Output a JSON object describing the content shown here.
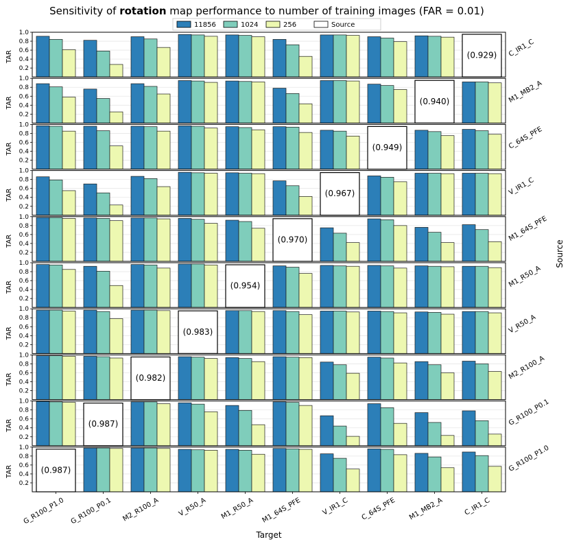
{
  "chart_data": {
    "type": "bar",
    "title_prefix": "Sensitivity of ",
    "title_bold": "rotation",
    "title_suffix": " map performance to number of training images (FAR = 0.01)",
    "xlabel": "Target",
    "ylabel": "TAR",
    "right_label": "Source",
    "ylim": [
      0,
      1.0
    ],
    "yticks": [
      "0.2",
      "0.4",
      "0.6",
      "0.8",
      "1.0"
    ],
    "ytick_values": [
      0.2,
      0.4,
      0.6,
      0.8,
      1.0
    ],
    "grid": true,
    "legend_position": "top-center",
    "categories": [
      "G_R100_P1.0",
      "G_R100_P0.1",
      "M2_R100_A",
      "V_R50_A",
      "M1_R50_A",
      "M1_64S_PFE",
      "V_IR1_C",
      "C_64S_PFE",
      "M1_MB2_A",
      "C_IR1_C"
    ],
    "series": [
      {
        "name": "11856",
        "color": "#2c7fb8"
      },
      {
        "name": "1024",
        "color": "#7fcdbb"
      },
      {
        "name": "256",
        "color": "#edf8b1"
      }
    ],
    "source_legend": "Source",
    "rows": [
      {
        "source": "C_IR1_C",
        "source_index": 9,
        "source_label": "(0.929)",
        "values": [
          [
            0.91,
            0.84,
            0.61
          ],
          [
            0.82,
            0.58,
            0.28
          ],
          [
            0.9,
            0.85,
            0.66
          ],
          [
            0.95,
            0.94,
            0.91
          ],
          [
            0.94,
            0.93,
            0.9
          ],
          [
            0.84,
            0.72,
            0.46
          ],
          [
            0.94,
            0.94,
            0.93
          ],
          [
            0.9,
            0.87,
            0.79
          ],
          [
            0.92,
            0.91,
            0.89
          ],
          null
        ]
      },
      {
        "source": "M1_MB2_A",
        "source_index": 8,
        "source_label": "(0.940)",
        "values": [
          [
            0.88,
            0.81,
            0.58
          ],
          [
            0.76,
            0.55,
            0.25
          ],
          [
            0.88,
            0.82,
            0.65
          ],
          [
            0.95,
            0.94,
            0.91
          ],
          [
            0.94,
            0.93,
            0.92
          ],
          [
            0.78,
            0.66,
            0.43
          ],
          [
            0.95,
            0.95,
            0.94
          ],
          [
            0.87,
            0.84,
            0.75
          ],
          null,
          [
            0.92,
            0.92,
            0.9
          ]
        ]
      },
      {
        "source": "C_64S_PFE",
        "source_index": 7,
        "source_label": "(0.949)",
        "values": [
          [
            0.97,
            0.96,
            0.85
          ],
          [
            0.96,
            0.86,
            0.52
          ],
          [
            0.96,
            0.95,
            0.85
          ],
          [
            0.97,
            0.96,
            0.92
          ],
          [
            0.95,
            0.93,
            0.88
          ],
          [
            0.95,
            0.94,
            0.82
          ],
          [
            0.87,
            0.85,
            0.74
          ],
          null,
          [
            0.87,
            0.84,
            0.75
          ],
          [
            0.89,
            0.86,
            0.78
          ]
        ]
      },
      {
        "source": "V_IR1_C",
        "source_index": 6,
        "source_label": "(0.967)",
        "values": [
          [
            0.86,
            0.79,
            0.55
          ],
          [
            0.7,
            0.5,
            0.23
          ],
          [
            0.87,
            0.82,
            0.64
          ],
          [
            0.96,
            0.95,
            0.94
          ],
          [
            0.95,
            0.94,
            0.93
          ],
          [
            0.77,
            0.66,
            0.42
          ],
          null,
          [
            0.88,
            0.85,
            0.75
          ],
          [
            0.94,
            0.94,
            0.93
          ],
          [
            0.94,
            0.94,
            0.93
          ]
        ]
      },
      {
        "source": "M1_64S_PFE",
        "source_index": 5,
        "source_label": "(0.970)",
        "values": [
          [
            0.98,
            0.98,
            0.96
          ],
          [
            0.97,
            0.96,
            0.91
          ],
          [
            0.97,
            0.97,
            0.95
          ],
          [
            0.96,
            0.94,
            0.85
          ],
          [
            0.92,
            0.89,
            0.74
          ],
          null,
          [
            0.75,
            0.63,
            0.42
          ],
          [
            0.95,
            0.93,
            0.8
          ],
          [
            0.76,
            0.65,
            0.42
          ],
          [
            0.82,
            0.71,
            0.44
          ]
        ]
      },
      {
        "source": "M1_R50_A",
        "source_index": 4,
        "source_label": "(0.954)",
        "values": [
          [
            0.96,
            0.95,
            0.85
          ],
          [
            0.92,
            0.81,
            0.49
          ],
          [
            0.96,
            0.95,
            0.88
          ],
          [
            0.97,
            0.97,
            0.95
          ],
          null,
          [
            0.93,
            0.9,
            0.76
          ],
          [
            0.94,
            0.93,
            0.92
          ],
          [
            0.94,
            0.93,
            0.88
          ],
          [
            0.93,
            0.92,
            0.91
          ],
          [
            0.92,
            0.92,
            0.89
          ]
        ]
      },
      {
        "source": "V_R50_A",
        "source_index": 3,
        "source_label": "(0.983)",
        "values": [
          [
            0.97,
            0.97,
            0.95
          ],
          [
            0.97,
            0.94,
            0.78
          ],
          [
            0.97,
            0.97,
            0.96
          ],
          null,
          [
            0.96,
            0.96,
            0.94
          ],
          [
            0.96,
            0.94,
            0.87
          ],
          [
            0.95,
            0.95,
            0.93
          ],
          [
            0.95,
            0.94,
            0.91
          ],
          [
            0.93,
            0.92,
            0.88
          ],
          [
            0.94,
            0.94,
            0.91
          ]
        ]
      },
      {
        "source": "M2_R100_A",
        "source_index": 2,
        "source_label": "(0.982)",
        "values": [
          [
            0.98,
            0.98,
            0.97
          ],
          [
            0.97,
            0.96,
            0.93
          ],
          null,
          [
            0.96,
            0.95,
            0.92
          ],
          [
            0.94,
            0.92,
            0.85
          ],
          [
            0.96,
            0.95,
            0.94
          ],
          [
            0.84,
            0.78,
            0.59
          ],
          [
            0.95,
            0.93,
            0.82
          ],
          [
            0.85,
            0.78,
            0.6
          ],
          [
            0.86,
            0.8,
            0.63
          ]
        ]
      },
      {
        "source": "G_R100_P0.1",
        "source_index": 1,
        "source_label": "(0.987)",
        "values": [
          [
            0.99,
            0.98,
            0.97
          ],
          null,
          [
            0.98,
            0.98,
            0.94
          ],
          [
            0.96,
            0.93,
            0.76
          ],
          [
            0.9,
            0.79,
            0.47
          ],
          [
            0.98,
            0.97,
            0.9
          ],
          [
            0.67,
            0.44,
            0.21
          ],
          [
            0.94,
            0.85,
            0.5
          ],
          [
            0.74,
            0.52,
            0.23
          ],
          [
            0.78,
            0.56,
            0.26
          ]
        ]
      },
      {
        "source": "G_R100_P1.0",
        "source_index": 0,
        "source_label": "(0.987)",
        "values": [
          null,
          [
            0.98,
            0.98,
            0.97
          ],
          [
            0.98,
            0.98,
            0.97
          ],
          [
            0.95,
            0.94,
            0.93
          ],
          [
            0.95,
            0.93,
            0.84
          ],
          [
            0.97,
            0.96,
            0.95
          ],
          [
            0.85,
            0.75,
            0.51
          ],
          [
            0.96,
            0.95,
            0.83
          ],
          [
            0.86,
            0.78,
            0.54
          ],
          [
            0.89,
            0.81,
            0.57
          ]
        ]
      }
    ]
  }
}
